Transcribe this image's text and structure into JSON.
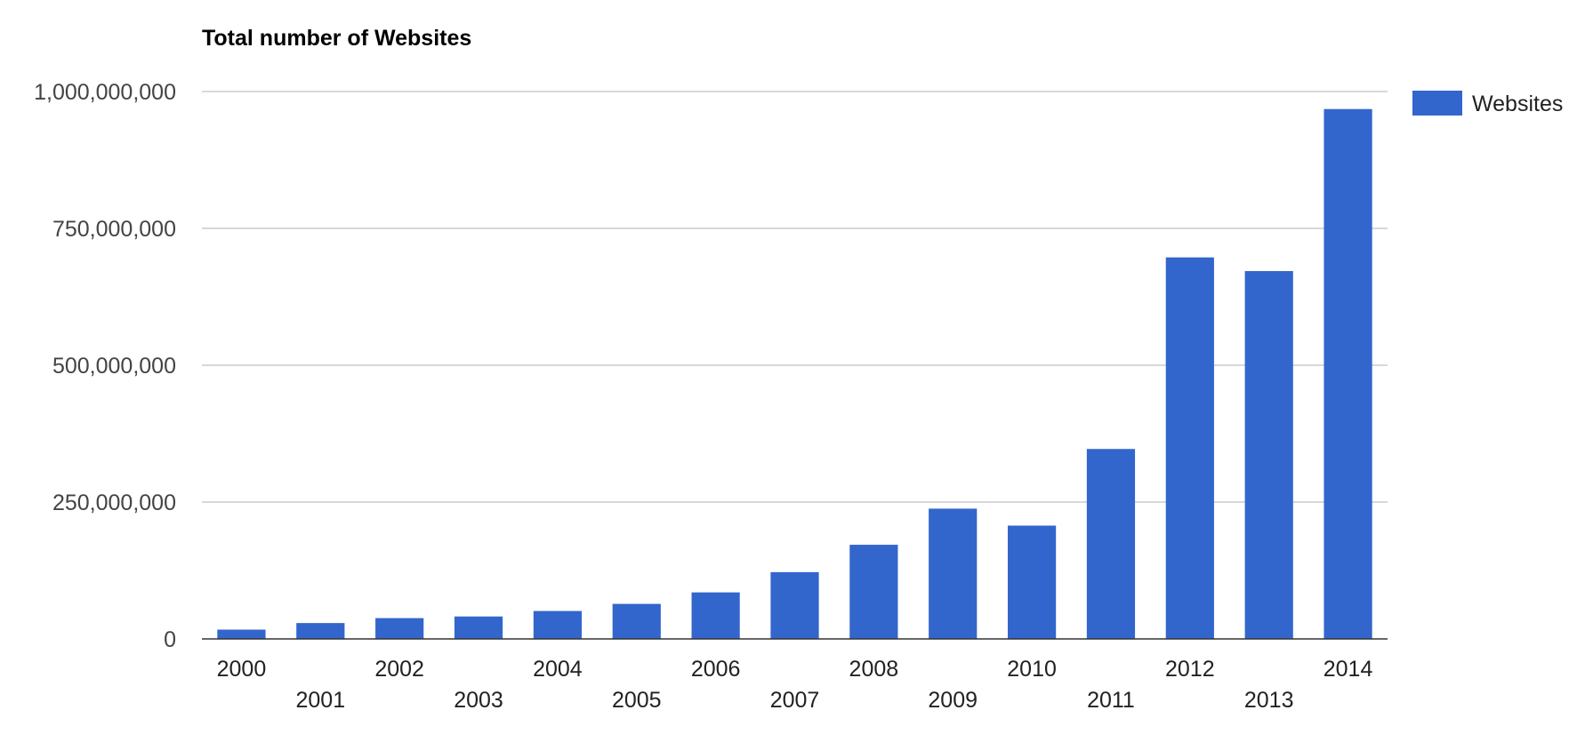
{
  "chart_data": {
    "type": "bar",
    "title": "Total number of Websites",
    "categories": [
      "2000",
      "2001",
      "2002",
      "2003",
      "2004",
      "2005",
      "2006",
      "2007",
      "2008",
      "2009",
      "2010",
      "2011",
      "2012",
      "2013",
      "2014"
    ],
    "series": [
      {
        "name": "Websites",
        "color": "#3366cc",
        "values": [
          17000000,
          29000000,
          38000000,
          41000000,
          51000000,
          64000000,
          85000000,
          122000000,
          172000000,
          238000000,
          207000000,
          347000000,
          697000000,
          672000000,
          968000000
        ]
      }
    ],
    "yticks": [
      {
        "value": 0,
        "label": "0"
      },
      {
        "value": 250000000,
        "label": "250,000,000"
      },
      {
        "value": 500000000,
        "label": "500,000,000"
      },
      {
        "value": 750000000,
        "label": "750,000,000"
      },
      {
        "value": 1000000000,
        "label": "1,000,000,000"
      }
    ],
    "ylim": [
      0,
      1000000000
    ],
    "xlabel": "",
    "ylabel": "",
    "grid": true,
    "legend_position": "right"
  }
}
